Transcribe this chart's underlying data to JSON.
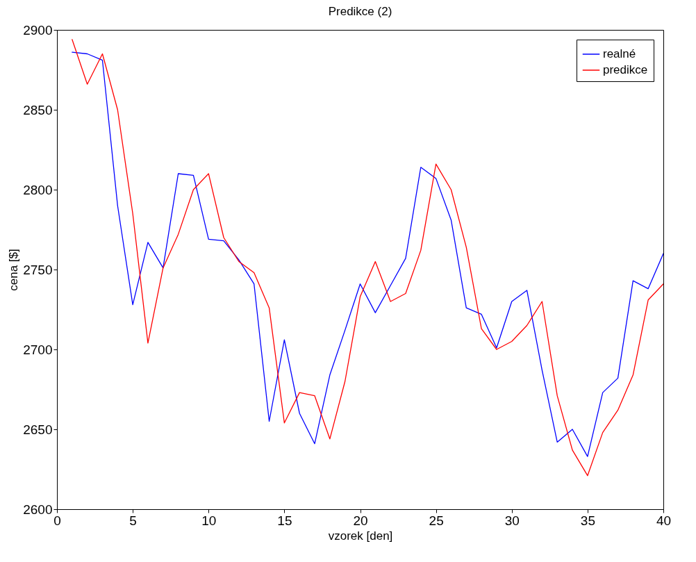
{
  "chart_data": {
    "type": "line",
    "title": "Predikce (2)",
    "xlabel": "vzorek [den]",
    "ylabel": "cena [$]",
    "x": [
      1,
      2,
      3,
      4,
      5,
      6,
      7,
      8,
      9,
      10,
      11,
      12,
      13,
      14,
      15,
      16,
      17,
      18,
      19,
      20,
      21,
      22,
      23,
      24,
      25,
      26,
      27,
      28,
      29,
      30,
      31,
      32,
      33,
      34,
      35,
      36,
      37,
      38,
      39,
      40
    ],
    "series": [
      {
        "name": "realné",
        "color": "#0000ff",
        "values": [
          2886,
          2885,
          2881,
          2790,
          2728,
          2767,
          2751,
          2810,
          2809,
          2769,
          2768,
          2756,
          2741,
          2655,
          2706,
          2660,
          2641,
          2684,
          2712,
          2741,
          2723,
          2740,
          2757,
          2814,
          2807,
          2781,
          2726,
          2722,
          2701,
          2730,
          2737,
          2687,
          2642,
          2650,
          2633,
          2673,
          2682,
          2743,
          2738,
          2760
        ]
      },
      {
        "name": "predikce",
        "color": "#ff0000",
        "values": [
          2894,
          2866,
          2885,
          2850,
          2785,
          2704,
          2751,
          2772,
          2800,
          2810,
          2770,
          2755,
          2748,
          2726,
          2654,
          2673,
          2671,
          2644,
          2680,
          2733,
          2755,
          2730,
          2735,
          2762,
          2816,
          2800,
          2764,
          2713,
          2700,
          2705,
          2715,
          2730,
          2671,
          2637,
          2621,
          2648,
          2662,
          2684,
          2731,
          2741
        ]
      }
    ],
    "xlim": [
      0,
      40
    ],
    "xticks": [
      0,
      5,
      10,
      15,
      20,
      25,
      30,
      35,
      40
    ],
    "ylim": [
      2600,
      2900
    ],
    "yticks": [
      2600,
      2650,
      2700,
      2750,
      2800,
      2850,
      2900
    ],
    "grid": false,
    "legend": "top right",
    "marker": "none",
    "line_style": "solid"
  }
}
